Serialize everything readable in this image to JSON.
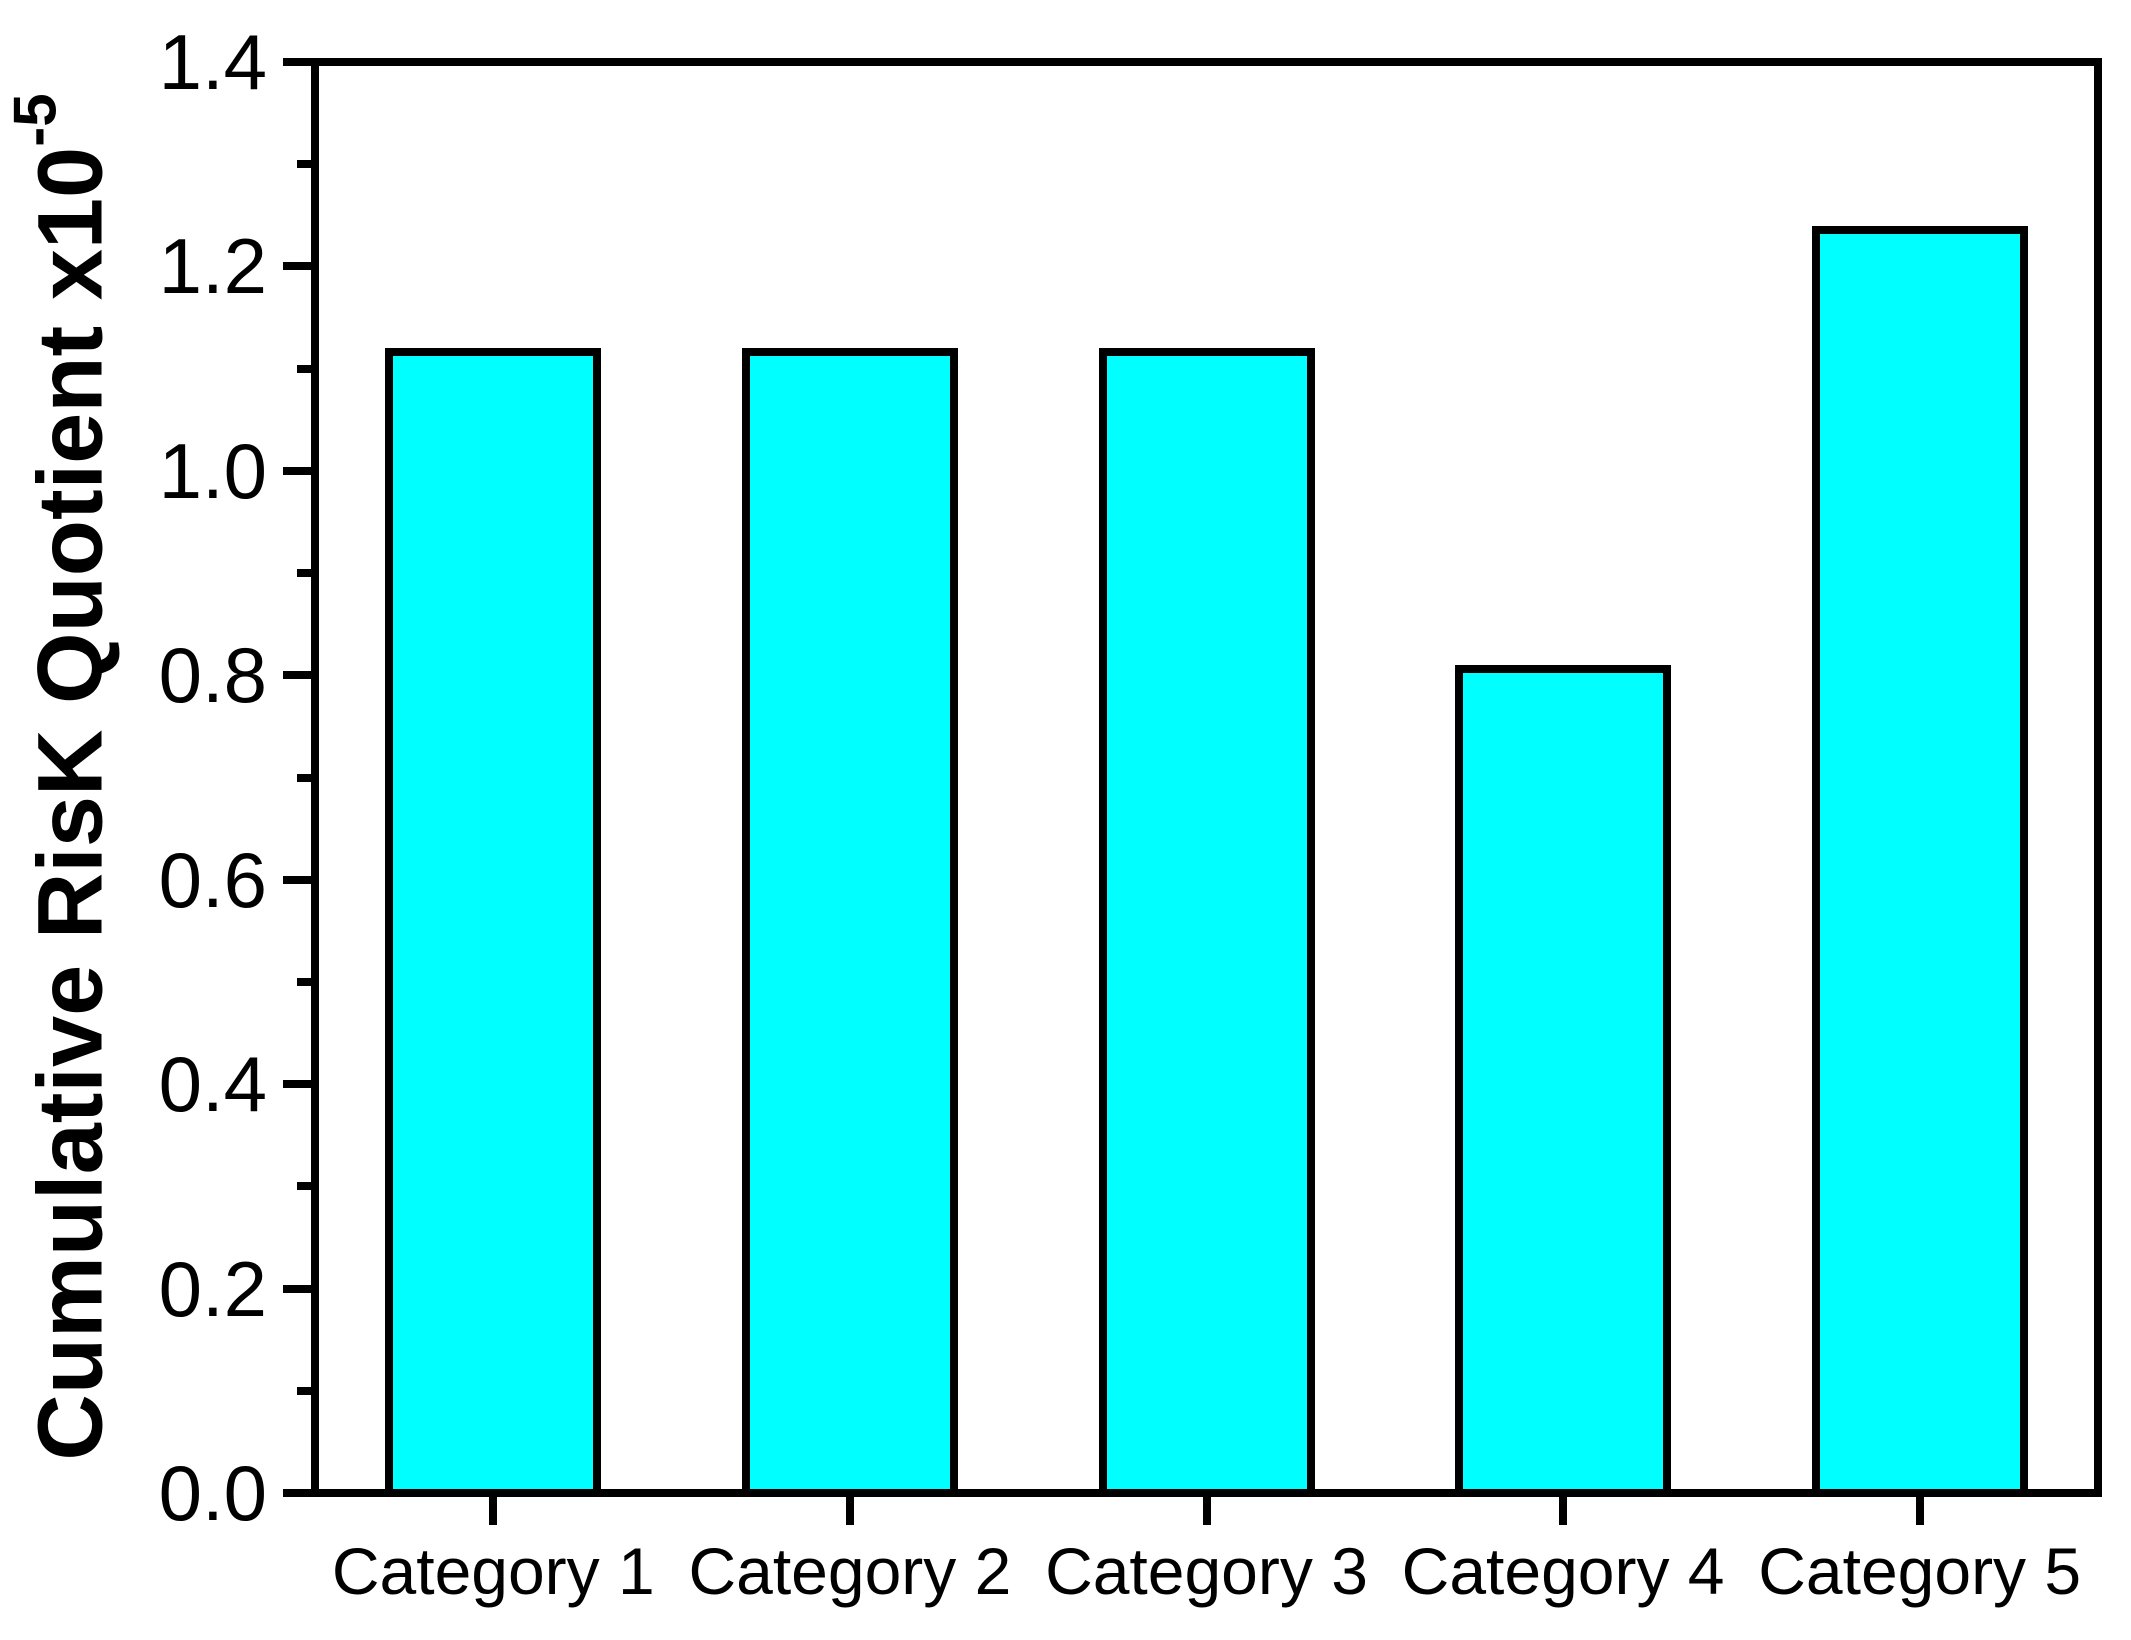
{
  "chart_data": {
    "type": "bar",
    "title": "",
    "categories": [
      "Category 1",
      "Category 2",
      "Category 3",
      "Category 4",
      "Category 5"
    ],
    "values": [
      1.12,
      1.12,
      1.12,
      0.81,
      1.24
    ],
    "xlabel": "",
    "ylabel": "Cumulative RisK Quotient x10^-5",
    "ylabel_base": "Cumulative RisK Quotient x10",
    "ylabel_exponent": "-5",
    "ylim": [
      0,
      1.4
    ],
    "y_major_tick_labels": [
      "0.0",
      "0.2",
      "0.4",
      "0.6",
      "0.8",
      "1.0",
      "1.2",
      "1.4"
    ],
    "y_minor_ticks": [
      0.1,
      0.3,
      0.5,
      0.7,
      0.9,
      1.1,
      1.3
    ],
    "grid": false,
    "legend": "none",
    "bar_fill_color": "#00FFFF",
    "bar_border_color": "#000000",
    "axis_color": "#000000",
    "text_color": "#000000",
    "background_color": "#FFFFFF"
  }
}
